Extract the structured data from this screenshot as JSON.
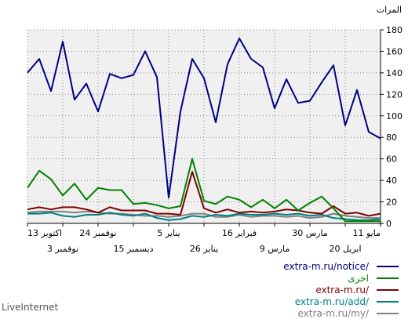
{
  "footer": "LiveInternet",
  "chart_data": {
    "type": "line",
    "ylabel": "المرات",
    "ylim": [
      0,
      180
    ],
    "yticks": [
      0,
      20,
      40,
      60,
      80,
      100,
      120,
      140,
      160,
      180
    ],
    "grid": true,
    "legend_position": "bottom-right",
    "x_ticks": [
      {
        "index": 0,
        "label": "11 مايو",
        "row": 1
      },
      {
        "index": 3,
        "label": "20 ابريل",
        "row": 2
      },
      {
        "index": 6,
        "label": "30 مارس",
        "row": 1
      },
      {
        "index": 9,
        "label": "9 مارس",
        "row": 2
      },
      {
        "index": 12,
        "label": "16 فبراير",
        "row": 1
      },
      {
        "index": 15,
        "label": "26 يناير",
        "row": 2
      },
      {
        "index": 18,
        "label": "5 يناير",
        "row": 1
      },
      {
        "index": 21,
        "label": "15 ديسمبر",
        "row": 2
      },
      {
        "index": 24,
        "label": "24 نوفمبر",
        "row": 1
      },
      {
        "index": 27,
        "label": "3 نوفمبر",
        "row": 2
      },
      {
        "index": 30,
        "label": "13 اكتوبر",
        "row": 1
      }
    ],
    "series": [
      {
        "name": "extra-m.ru/notice/",
        "color": "#000080",
        "values": [
          79,
          85,
          124,
          91,
          147,
          131,
          114,
          112,
          134,
          107,
          145,
          153,
          172,
          148,
          94,
          135,
          153,
          104,
          24,
          136,
          160,
          138,
          135,
          139,
          104,
          130,
          115,
          169,
          123,
          153,
          140
        ]
      },
      {
        "name": "اخرى",
        "color": "#008000",
        "values": [
          2,
          2,
          2,
          2,
          14,
          25,
          19,
          12,
          22,
          14,
          22,
          15,
          22,
          25,
          18,
          21,
          60,
          16,
          14,
          17,
          19,
          18,
          31,
          31,
          33,
          22,
          37,
          26,
          41,
          49,
          33
        ]
      },
      {
        "name": "extra-m.ru/",
        "color": "#800000",
        "values": [
          9,
          7,
          10,
          9,
          16,
          9,
          10,
          12,
          13,
          11,
          10,
          11,
          10,
          13,
          10,
          14,
          48,
          8,
          9,
          9,
          12,
          12,
          12,
          15,
          10,
          13,
          15,
          15,
          13,
          15,
          13
        ]
      },
      {
        "name": "extra-m.ru/add/",
        "color": "#008080",
        "values": [
          4,
          3,
          3,
          4,
          5,
          8,
          7,
          9,
          8,
          9,
          8,
          8,
          9,
          7,
          8,
          6,
          7,
          4,
          3,
          5,
          9,
          7,
          8,
          10,
          8,
          8,
          6,
          7,
          10,
          9,
          9
        ]
      },
      {
        "name": "extra-m.ru/my/",
        "color": "#808080",
        "values": [
          5,
          5,
          6,
          7,
          9,
          6,
          5,
          7,
          6,
          7,
          7,
          6,
          8,
          6,
          6,
          9,
          9,
          7,
          6,
          7,
          7,
          8,
          9,
          9,
          10,
          11,
          10,
          11,
          11,
          11,
          10
        ]
      }
    ]
  }
}
